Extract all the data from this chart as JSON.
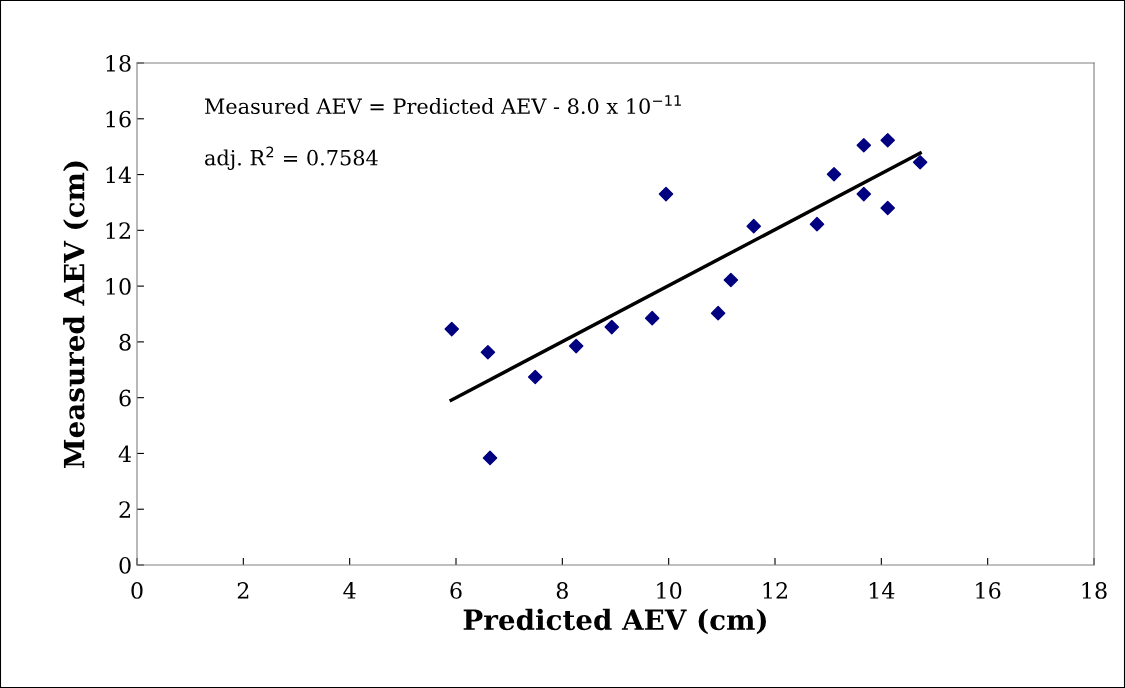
{
  "chart_data": {
    "type": "scatter",
    "xlabel": "Predicted AEV (cm)",
    "ylabel": "Measured AEV (cm)",
    "annotations": [
      "Measured AEV = Predicted AEV - 8.0 x 10$^{−11}$",
      "adj. R$^{2}$ = 0.7584"
    ],
    "xlim": [
      0,
      18
    ],
    "ylim": [
      0,
      18
    ],
    "xticks": [
      0,
      2,
      4,
      6,
      8,
      10,
      12,
      14,
      16,
      18
    ],
    "yticks": [
      0,
      2,
      4,
      6,
      8,
      10,
      12,
      14,
      16,
      18
    ],
    "grid": false,
    "legend": false,
    "series": [
      {
        "color": "#000080",
        "marker": "diamond",
        "x": [
          5.92,
          6.6,
          6.64,
          7.49,
          8.26,
          8.93,
          9.69,
          9.95,
          10.93,
          11.17,
          11.6,
          12.79,
          13.11,
          13.67,
          13.67,
          14.12,
          14.12,
          14.73
        ],
        "values": [
          8.46,
          7.63,
          3.84,
          6.74,
          7.85,
          8.53,
          8.85,
          13.3,
          9.03,
          10.22,
          12.15,
          12.22,
          14.01,
          15.05,
          13.3,
          15.23,
          12.8,
          14.44
        ]
      },
      {
        "type": "line",
        "color": "#000000",
        "marker": "none",
        "line_style": "solid",
        "x": [
          5.91,
          14.73
        ],
        "values": [
          5.91,
          14.77
        ]
      }
    ]
  }
}
